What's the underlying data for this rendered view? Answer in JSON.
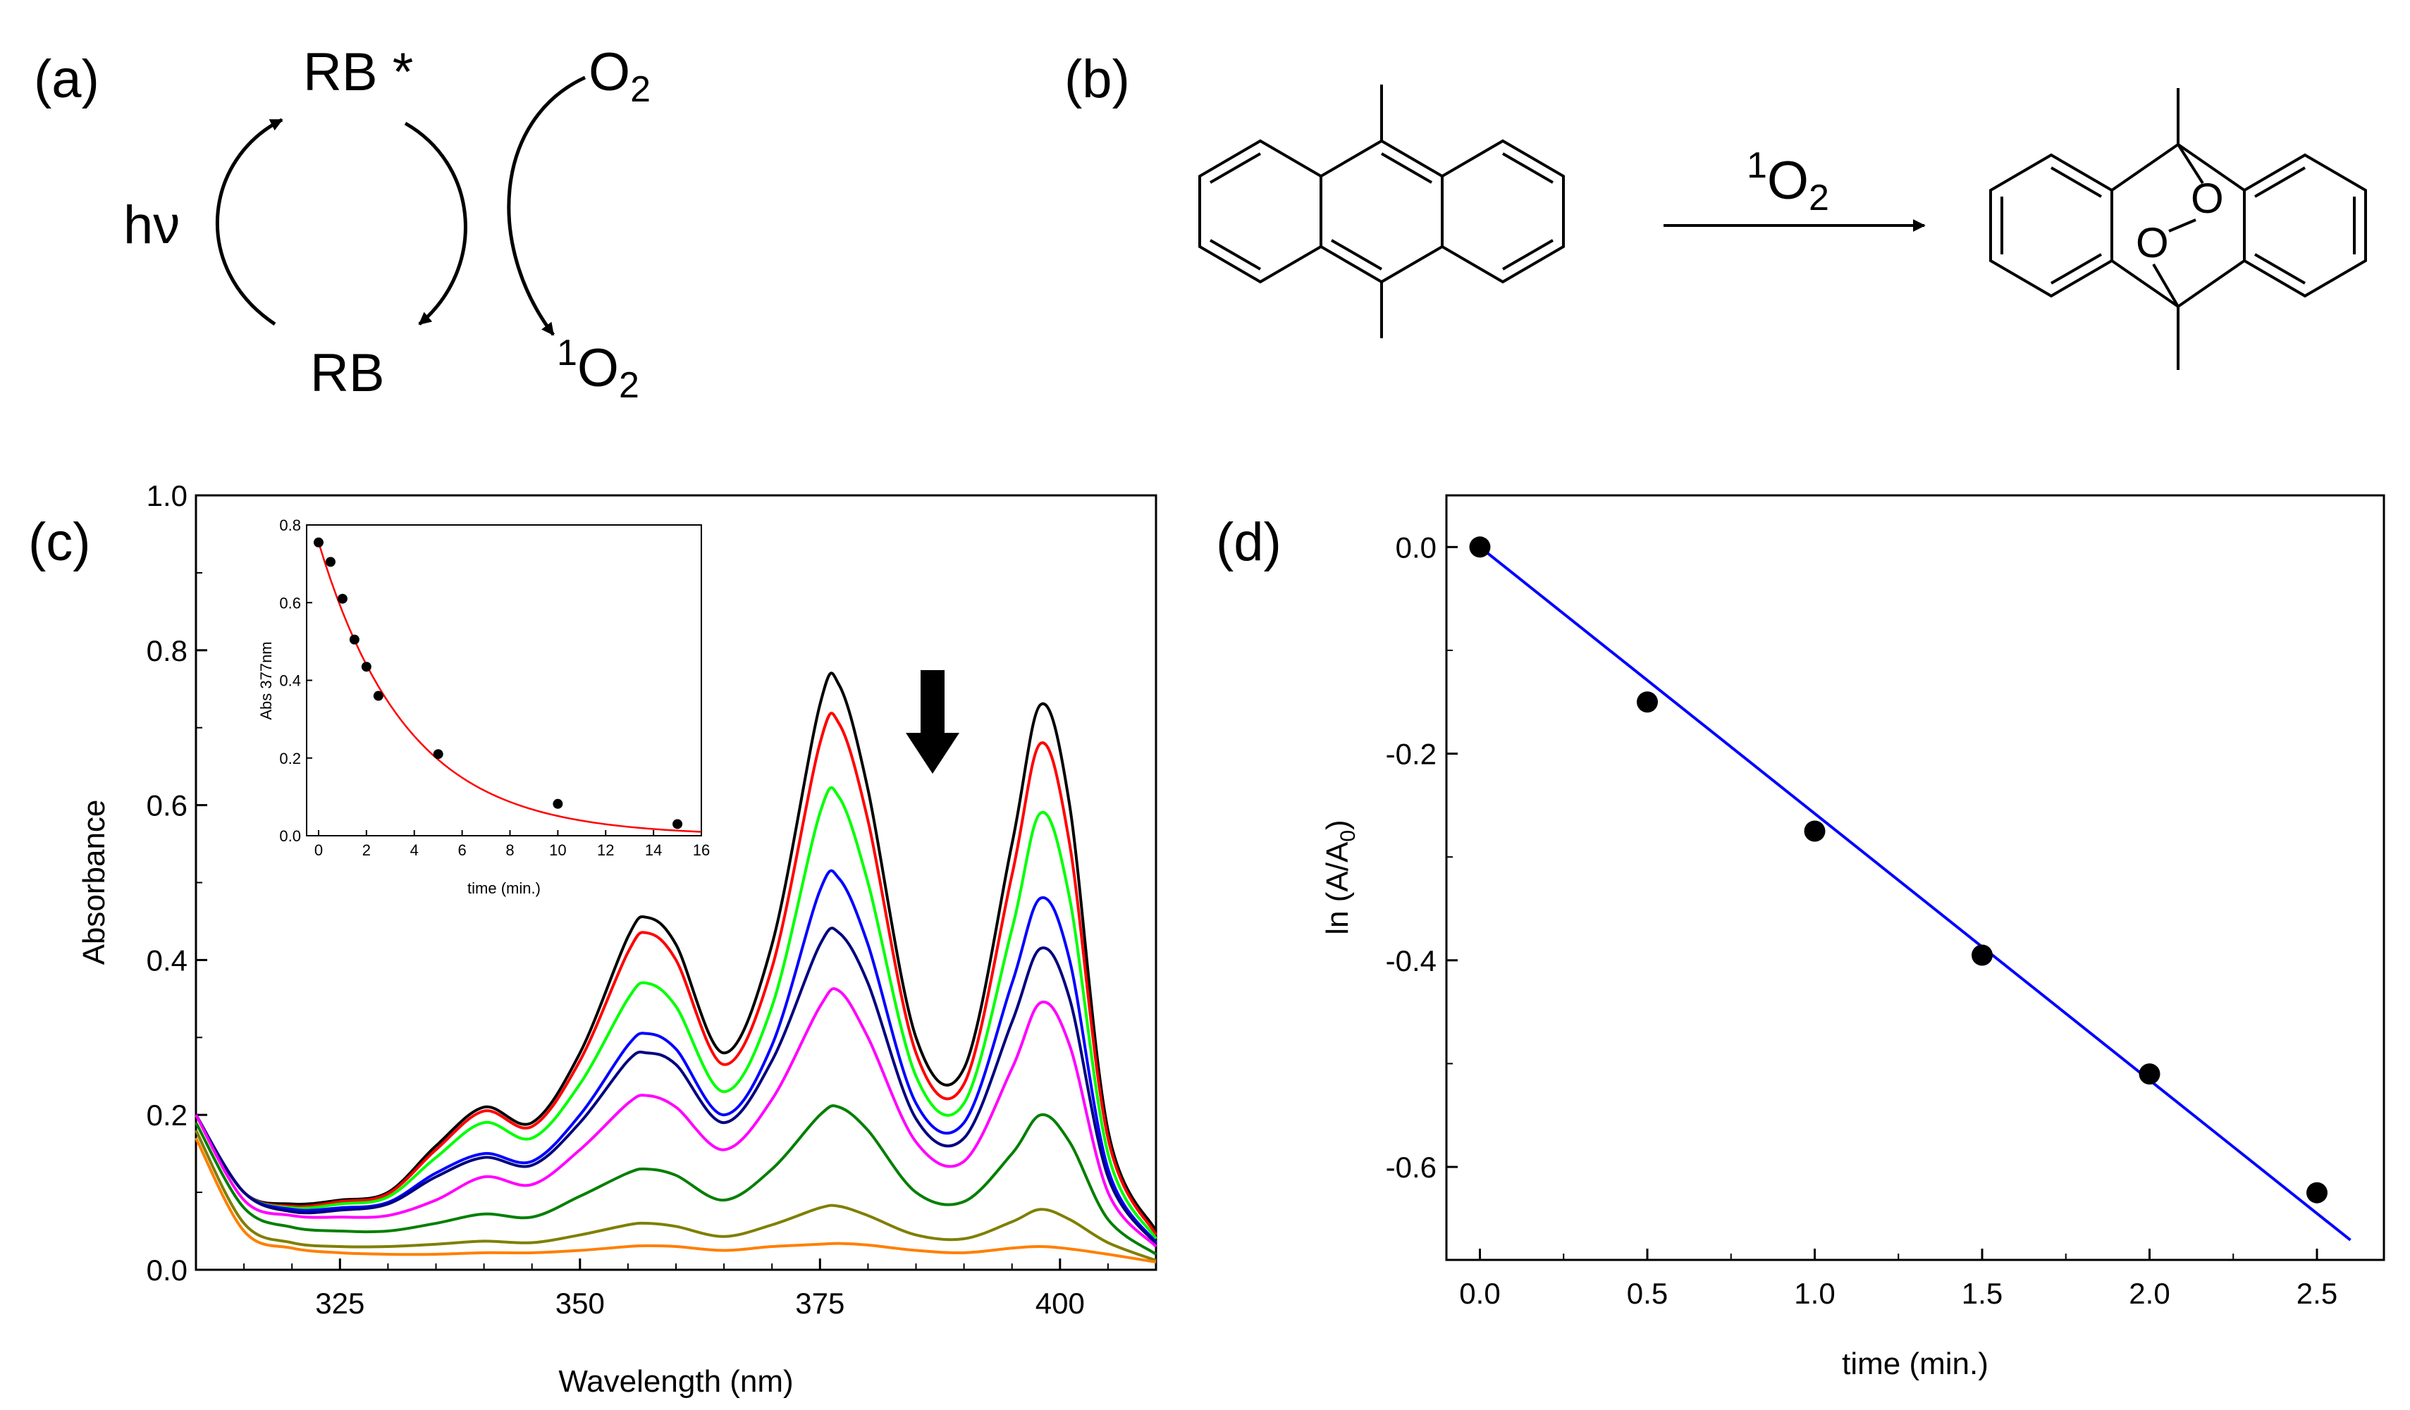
{
  "panel_a": {
    "label": "(a)",
    "rb_star": "RB *",
    "rb": "RB",
    "hv": "hν",
    "o2_base": "O",
    "o2_sub": "2",
    "singlet_sup": "1",
    "singlet_base": "O",
    "singlet_sub": "2"
  },
  "panel_b": {
    "label": "(b)",
    "reagent_sup": "1",
    "reagent_base": "O",
    "reagent_sub": "2",
    "o_atom_1": "O",
    "o_atom_2": "O"
  },
  "chart_data": [
    {
      "id": "c-main",
      "panel_label": "(c)",
      "type": "line",
      "xlabel": "Wavelength (nm)",
      "ylabel": "Absorbance",
      "xlim": [
        310,
        410
      ],
      "ylim": [
        0.0,
        1.0
      ],
      "xticks": [
        325,
        350,
        375,
        400
      ],
      "yticks": [
        0.0,
        0.2,
        0.4,
        0.6,
        0.8,
        1.0
      ],
      "ytick_labels": [
        "0.0",
        "0.2",
        "0.4",
        "0.6",
        "0.8",
        "1.0"
      ],
      "annotation": "downward arrow at ~387 nm indicating decreasing absorbance over time",
      "x": [
        310,
        315,
        320,
        325,
        330,
        335,
        340,
        345,
        350,
        355,
        357,
        360,
        365,
        370,
        375,
        377,
        380,
        385,
        390,
        395,
        398,
        401,
        405,
        410
      ],
      "series": [
        {
          "name": "t0",
          "color": "#000000",
          "values": [
            0.2,
            0.1,
            0.085,
            0.09,
            0.1,
            0.16,
            0.21,
            0.19,
            0.28,
            0.43,
            0.455,
            0.42,
            0.28,
            0.42,
            0.73,
            0.755,
            0.62,
            0.3,
            0.26,
            0.55,
            0.73,
            0.6,
            0.18,
            0.05
          ]
        },
        {
          "name": "t1",
          "color": "#ff0000",
          "values": [
            0.2,
            0.1,
            0.082,
            0.088,
            0.098,
            0.155,
            0.205,
            0.185,
            0.27,
            0.41,
            0.435,
            0.4,
            0.265,
            0.39,
            0.68,
            0.705,
            0.58,
            0.28,
            0.24,
            0.51,
            0.68,
            0.55,
            0.17,
            0.045
          ]
        },
        {
          "name": "t2",
          "color": "#00ff00",
          "values": [
            0.2,
            0.1,
            0.08,
            0.085,
            0.094,
            0.145,
            0.19,
            0.17,
            0.24,
            0.35,
            0.37,
            0.34,
            0.23,
            0.34,
            0.59,
            0.61,
            0.5,
            0.25,
            0.215,
            0.44,
            0.59,
            0.48,
            0.15,
            0.04
          ]
        },
        {
          "name": "t3",
          "color": "#0000ff",
          "values": [
            0.2,
            0.1,
            0.078,
            0.08,
            0.087,
            0.125,
            0.15,
            0.14,
            0.2,
            0.29,
            0.305,
            0.285,
            0.2,
            0.29,
            0.49,
            0.505,
            0.42,
            0.215,
            0.19,
            0.37,
            0.48,
            0.4,
            0.13,
            0.035
          ]
        },
        {
          "name": "t4",
          "color": "#00007f",
          "values": [
            0.2,
            0.1,
            0.075,
            0.077,
            0.085,
            0.12,
            0.145,
            0.135,
            0.19,
            0.27,
            0.28,
            0.265,
            0.19,
            0.27,
            0.42,
            0.435,
            0.37,
            0.195,
            0.17,
            0.32,
            0.415,
            0.35,
            0.12,
            0.033
          ]
        },
        {
          "name": "t5",
          "color": "#ff00ff",
          "values": [
            0.2,
            0.09,
            0.07,
            0.068,
            0.07,
            0.09,
            0.12,
            0.11,
            0.155,
            0.215,
            0.225,
            0.21,
            0.155,
            0.22,
            0.34,
            0.36,
            0.3,
            0.165,
            0.14,
            0.26,
            0.345,
            0.29,
            0.1,
            0.03
          ]
        },
        {
          "name": "t6",
          "color": "#007f00",
          "values": [
            0.19,
            0.08,
            0.055,
            0.05,
            0.05,
            0.06,
            0.072,
            0.068,
            0.095,
            0.125,
            0.13,
            0.122,
            0.09,
            0.13,
            0.2,
            0.21,
            0.18,
            0.1,
            0.088,
            0.15,
            0.2,
            0.165,
            0.065,
            0.02
          ]
        },
        {
          "name": "t7",
          "color": "#7f7f00",
          "values": [
            0.18,
            0.06,
            0.035,
            0.03,
            0.03,
            0.033,
            0.037,
            0.035,
            0.045,
            0.058,
            0.06,
            0.056,
            0.043,
            0.058,
            0.08,
            0.082,
            0.07,
            0.045,
            0.04,
            0.062,
            0.078,
            0.065,
            0.035,
            0.012
          ]
        },
        {
          "name": "t8",
          "color": "#ff7f00",
          "values": [
            0.17,
            0.05,
            0.028,
            0.022,
            0.02,
            0.02,
            0.022,
            0.022,
            0.025,
            0.03,
            0.031,
            0.03,
            0.025,
            0.03,
            0.033,
            0.034,
            0.032,
            0.025,
            0.022,
            0.028,
            0.03,
            0.027,
            0.02,
            0.01
          ]
        }
      ]
    },
    {
      "id": "c-inset",
      "type": "scatter",
      "xlabel": "time (min.)",
      "ylabel": "Abs 377nm",
      "xlim": [
        -0.5,
        16
      ],
      "ylim": [
        0.0,
        0.8
      ],
      "xticks": [
        0,
        2,
        4,
        6,
        8,
        10,
        12,
        14,
        16
      ],
      "yticks": [
        0.0,
        0.2,
        0.4,
        0.6,
        0.8
      ],
      "ytick_labels": [
        "0.0",
        "0.2",
        "0.4",
        "0.6",
        "0.8"
      ],
      "points": {
        "x": [
          0,
          0.5,
          1.0,
          1.5,
          2.0,
          2.5,
          5.0,
          10.0,
          15.0
        ],
        "y": [
          0.755,
          0.705,
          0.61,
          0.505,
          0.435,
          0.36,
          0.21,
          0.082,
          0.03
        ]
      },
      "fit": {
        "type": "exponential decay",
        "color": "#ff0000",
        "a": 0.755,
        "k": 0.27
      }
    },
    {
      "id": "d",
      "panel_label": "(d)",
      "type": "scatter",
      "xlabel": "time (min.)",
      "ylabel_main": "ln (A/A",
      "ylabel_sub": "0",
      "ylabel_end": ")",
      "xlim": [
        -0.1,
        2.7
      ],
      "ylim": [
        -0.69,
        0.05
      ],
      "xticks": [
        0.0,
        0.5,
        1.0,
        1.5,
        2.0,
        2.5
      ],
      "xtick_labels": [
        "0.0",
        "0.5",
        "1.0",
        "1.5",
        "2.0",
        "2.5"
      ],
      "yticks": [
        0.0,
        -0.2,
        -0.4,
        -0.6
      ],
      "ytick_labels": [
        "0.0",
        "-0.2",
        "-0.4",
        "-0.6"
      ],
      "points": {
        "x": [
          0.0,
          0.5,
          1.0,
          1.5,
          2.0,
          2.5
        ],
        "y": [
          0.0,
          -0.15,
          -0.275,
          -0.395,
          -0.51,
          -0.625
        ]
      },
      "fit": {
        "type": "linear",
        "color": "#0000ff",
        "slope": -0.258,
        "intercept": 0.0,
        "x_range": [
          0.0,
          2.6
        ]
      }
    }
  ]
}
